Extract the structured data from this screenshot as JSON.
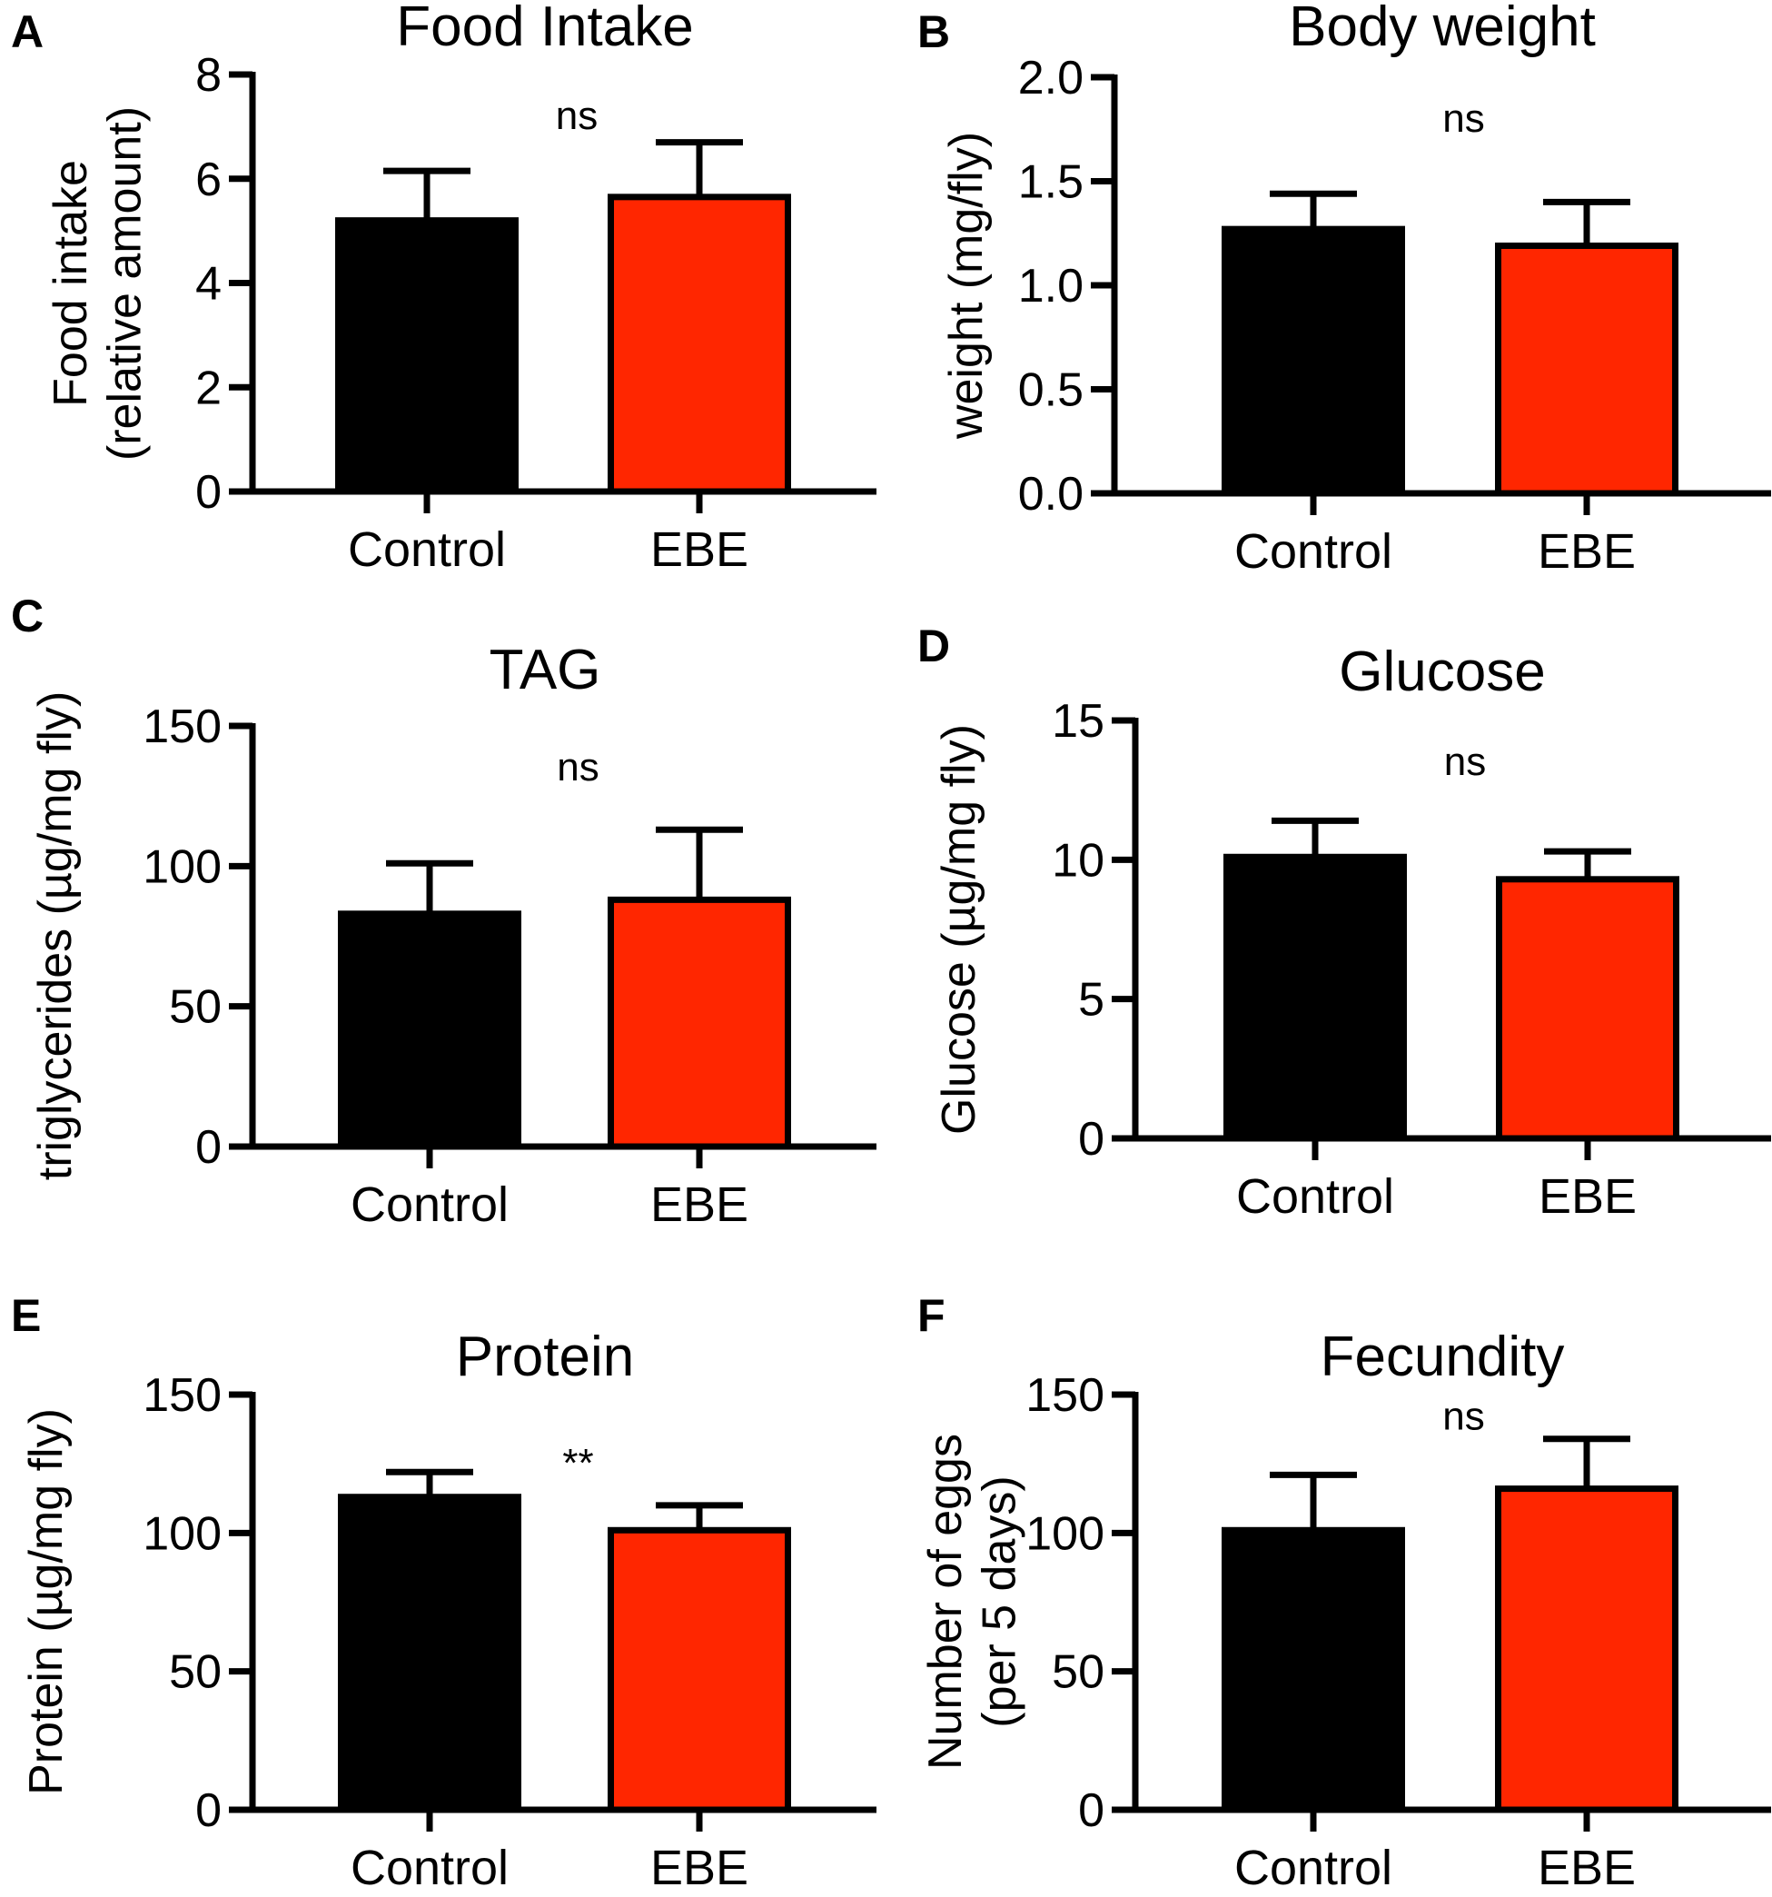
{
  "chart_data": [
    {
      "type": "bar",
      "panel": "A",
      "title": "Food Intake",
      "ylabel": [
        "Food intake",
        "(relative amount)"
      ],
      "categories": [
        "Control",
        "EBE"
      ],
      "values": [
        5.2,
        5.65
      ],
      "errors": [
        0.95,
        1.05
      ],
      "ylim": [
        0,
        8
      ],
      "yticks": [
        "0",
        "2",
        "4",
        "6",
        "8"
      ],
      "significance": "ns",
      "colors": [
        "#000000",
        "#ff2600"
      ]
    },
    {
      "type": "bar",
      "panel": "B",
      "title": "Body weight",
      "ylabel": [
        "weight (mg/fly)"
      ],
      "categories": [
        "Control",
        "EBE"
      ],
      "values": [
        1.27,
        1.19
      ],
      "errors": [
        0.17,
        0.21
      ],
      "ylim": [
        0,
        2.0
      ],
      "yticks": [
        "0.0",
        "0.5",
        "1.0",
        "1.5",
        "2.0"
      ],
      "significance": "ns",
      "colors": [
        "#000000",
        "#ff2600"
      ]
    },
    {
      "type": "bar",
      "panel": "C",
      "title": "TAG",
      "ylabel": [
        "triglycerides (µg/mg fly)"
      ],
      "categories": [
        "Control",
        "EBE"
      ],
      "values": [
        83,
        88
      ],
      "errors": [
        18,
        25
      ],
      "ylim": [
        0,
        150
      ],
      "yticks": [
        "0",
        "50",
        "100",
        "150"
      ],
      "significance": "ns",
      "colors": [
        "#000000",
        "#ff2600"
      ]
    },
    {
      "type": "bar",
      "panel": "D",
      "title": "Glucose",
      "ylabel": [
        "Glucose (µg/mg fly)"
      ],
      "categories": [
        "Control",
        "EBE"
      ],
      "values": [
        10.1,
        9.3
      ],
      "errors": [
        1.3,
        1.0
      ],
      "ylim": [
        0,
        15
      ],
      "yticks": [
        "0",
        "5",
        "10",
        "15"
      ],
      "significance": "ns",
      "colors": [
        "#000000",
        "#ff2600"
      ]
    },
    {
      "type": "bar",
      "panel": "E",
      "title": "Protein",
      "ylabel": [
        "Protein (µg/mg fly)"
      ],
      "categories": [
        "Control",
        "EBE"
      ],
      "values": [
        113,
        101
      ],
      "errors": [
        9,
        9
      ],
      "ylim": [
        0,
        150
      ],
      "yticks": [
        "0",
        "50",
        "100",
        "150"
      ],
      "significance": "**",
      "colors": [
        "#000000",
        "#ff2600"
      ]
    },
    {
      "type": "bar",
      "panel": "F",
      "title": "Fecundity",
      "ylabel": [
        "Number of eggs",
        "(per 5 days)"
      ],
      "categories": [
        "Control",
        "EBE"
      ],
      "values": [
        101,
        116
      ],
      "errors": [
        20,
        18
      ],
      "ylim": [
        0,
        150
      ],
      "yticks": [
        "0",
        "50",
        "100",
        "150"
      ],
      "significance": "ns",
      "colors": [
        "#000000",
        "#ff2600"
      ]
    }
  ]
}
